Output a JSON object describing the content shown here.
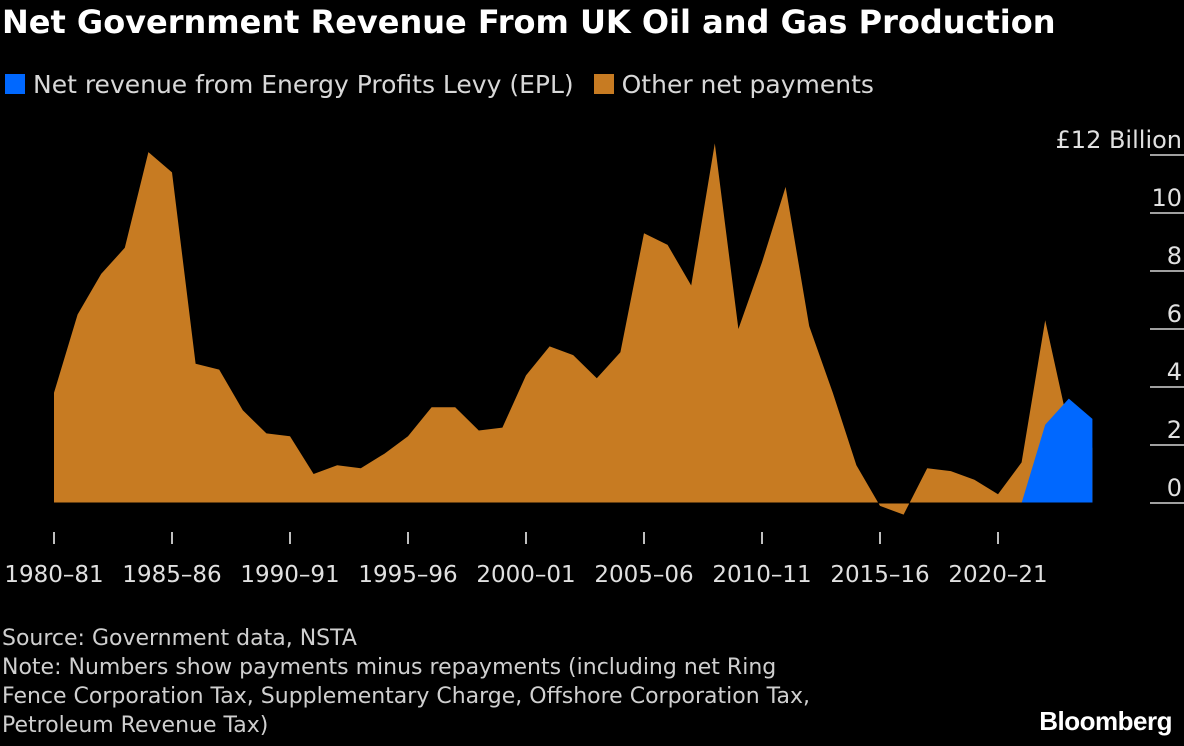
{
  "header": {
    "title": "Net Government Revenue From UK Oil and Gas Production"
  },
  "legend": {
    "items": [
      {
        "label": "Net revenue from Energy Profits Levy (EPL)",
        "color": "#0068ff"
      },
      {
        "label": "Other net payments",
        "color": "#c77b22"
      }
    ]
  },
  "footer": {
    "source": "Source: Government data, NSTA",
    "note_line1": "Note: Numbers show payments minus repayments (including net Ring",
    "note_line2": "Fence Corporation Tax, Supplementary Charge, Offshore Corporation Tax,",
    "note_line3": "Petroleum Revenue Tax)"
  },
  "brand": "Bloomberg",
  "chart_data": {
    "type": "area",
    "stacked": true,
    "title": "Net Government Revenue From UK Oil and Gas Production",
    "ylabel": "£12 Billion",
    "y_unit_label": "£12 Billion",
    "ylim": [
      -1,
      12
    ],
    "yticks": [
      0,
      2,
      4,
      6,
      8,
      10,
      12
    ],
    "ytick_labels": [
      "0",
      "2",
      "4",
      "6",
      "8",
      "10",
      "£12 Billion"
    ],
    "x": [
      "1980-81",
      "1981-82",
      "1982-83",
      "1983-84",
      "1984-85",
      "1985-86",
      "1986-87",
      "1987-88",
      "1988-89",
      "1989-90",
      "1990-91",
      "1991-92",
      "1992-93",
      "1993-94",
      "1994-95",
      "1995-96",
      "1996-97",
      "1997-98",
      "1998-99",
      "1999-00",
      "2000-01",
      "2001-02",
      "2002-03",
      "2003-04",
      "2004-05",
      "2005-06",
      "2006-07",
      "2007-08",
      "2008-09",
      "2009-10",
      "2010-11",
      "2011-12",
      "2012-13",
      "2013-14",
      "2014-15",
      "2015-16",
      "2016-17",
      "2017-18",
      "2018-19",
      "2019-20",
      "2020-21",
      "2021-22",
      "2022-23",
      "2023-24",
      "2024-25"
    ],
    "xtick_labels": [
      "1980–81",
      "1985–86",
      "1990–91",
      "1995–96",
      "2000–01",
      "2005–06",
      "2010–11",
      "2015–16",
      "2020–21"
    ],
    "xtick_indices": [
      0,
      5,
      10,
      15,
      20,
      25,
      30,
      35,
      40
    ],
    "series": [
      {
        "name": "Other net payments",
        "color": "#c77b22",
        "values": [
          3.8,
          6.5,
          7.9,
          8.8,
          12.1,
          11.4,
          4.8,
          4.6,
          3.2,
          2.4,
          2.3,
          1.0,
          1.3,
          1.2,
          1.7,
          2.3,
          3.3,
          3.3,
          2.5,
          2.6,
          4.4,
          5.4,
          5.1,
          4.3,
          5.2,
          9.3,
          8.9,
          7.5,
          12.4,
          6.0,
          8.3,
          10.9,
          6.1,
          3.8,
          1.3,
          -0.1,
          -0.4,
          1.2,
          1.1,
          0.8,
          0.3,
          1.4,
          6.3,
          2.6,
          1.9
        ]
      },
      {
        "name": "Net revenue from Energy Profits Levy (EPL)",
        "color": "#0068ff",
        "values": [
          0,
          0,
          0,
          0,
          0,
          0,
          0,
          0,
          0,
          0,
          0,
          0,
          0,
          0,
          0,
          0,
          0,
          0,
          0,
          0,
          0,
          0,
          0,
          0,
          0,
          0,
          0,
          0,
          0,
          0,
          0,
          0,
          0,
          0,
          0,
          0,
          0,
          0,
          0,
          0,
          0,
          0,
          2.7,
          3.6,
          2.9
        ]
      }
    ]
  },
  "colors": {
    "background": "#000000",
    "other": "#c77b22",
    "epl": "#0068ff",
    "axis": "#ffffff"
  }
}
